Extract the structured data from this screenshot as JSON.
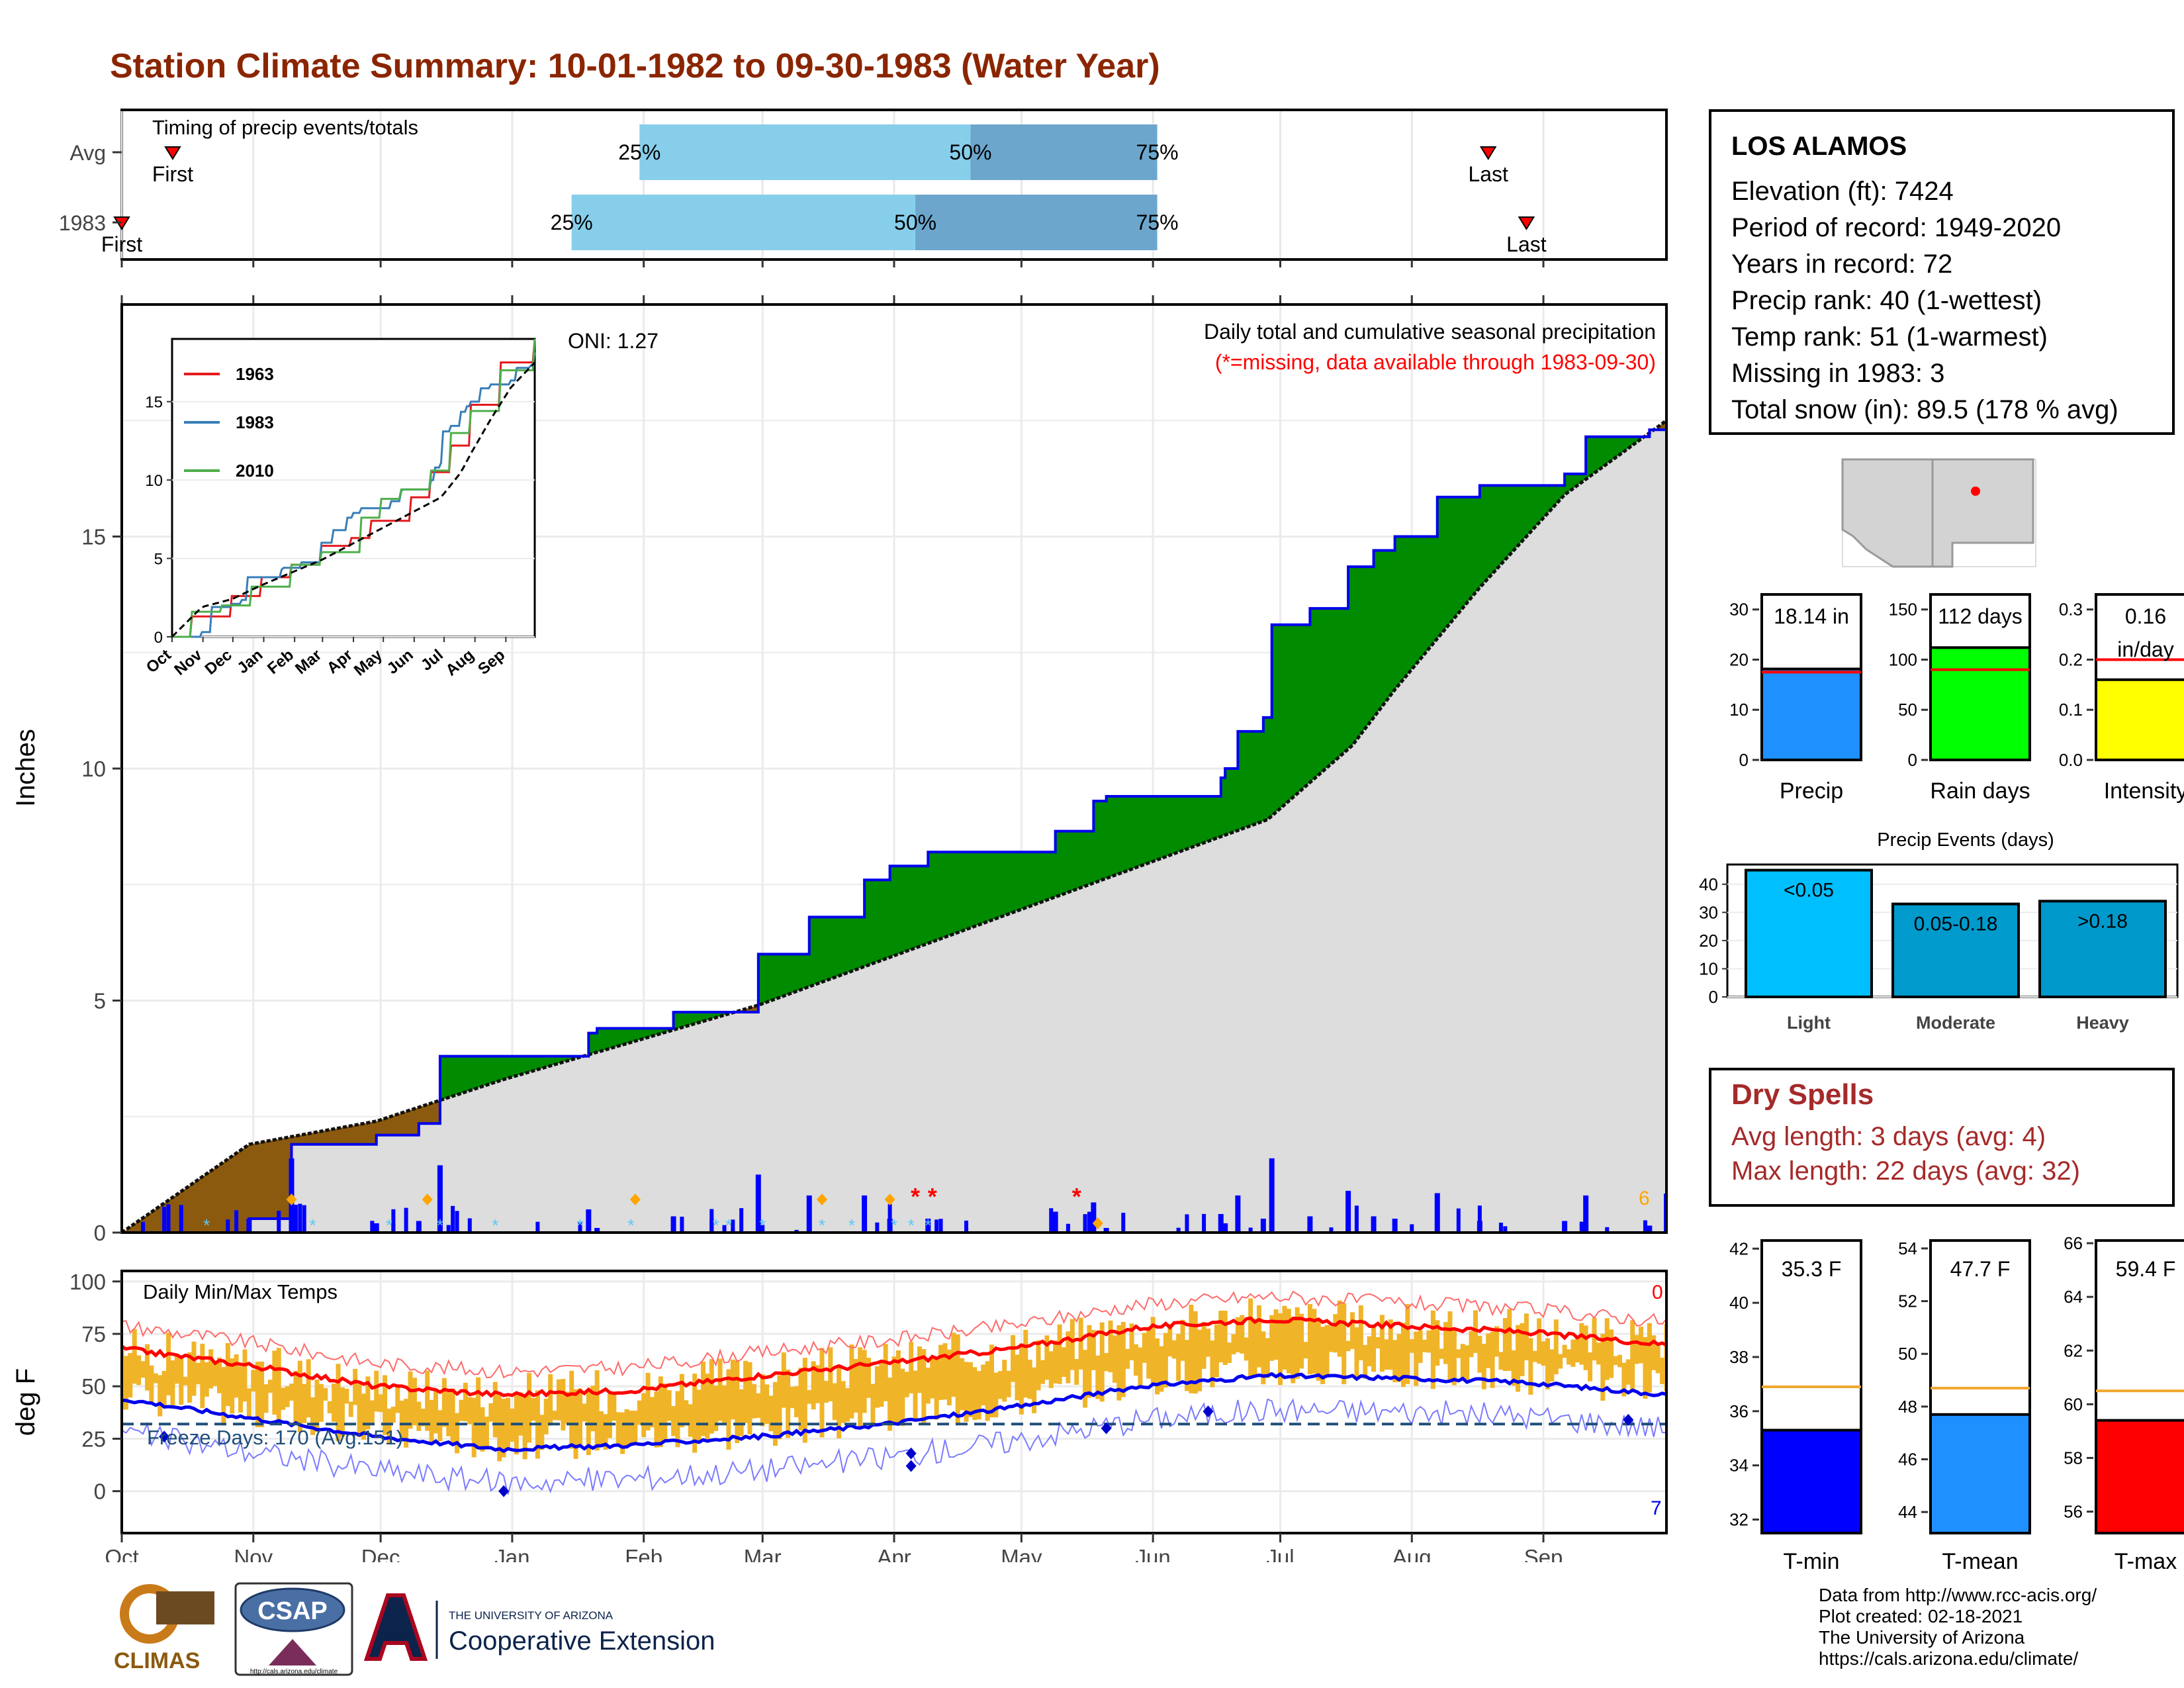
{
  "title": "Station Climate Summary: 10-01-1982 to 09-30-1983 (Water Year)",
  "colors": {
    "title": "#8B2500",
    "light_blue": "#87CEEB",
    "steel": "#6CA6CD",
    "green": "#008B00",
    "brown": "#8B5A0F",
    "gray": "#DDDDDD",
    "orange": "#F0B428",
    "red": "#FF0000",
    "blue": "#0000FF"
  },
  "timing": {
    "label": "Timing of precip events/totals",
    "rows": [
      {
        "name": "Avg",
        "first_label": "First",
        "last_label": "Last",
        "p25_label": "25%",
        "p50_label": "50%",
        "p75_label": "75%",
        "first": 12,
        "p25": 122,
        "p50": 200,
        "p75": 244,
        "last": 322
      },
      {
        "name": "1983",
        "first_label": "First",
        "last_label": "Last",
        "p25_label": "25%",
        "p50_label": "50%",
        "p75_label": "75%",
        "first": 0,
        "p25": 106,
        "p50": 187,
        "p75": 244,
        "last": 331
      }
    ]
  },
  "precip_panel": {
    "ylabel": "Inches",
    "yticks": [
      "0",
      "5",
      "10",
      "15"
    ],
    "caption": "Daily total and cumulative seasonal precipitation",
    "missing_note": "(*=missing, data available through 1983-09-30)",
    "oni": "ONI: 1.27",
    "daily_max_label": "6",
    "inset": {
      "yticks": [
        "0",
        "5",
        "10",
        "15"
      ],
      "xticks": [
        "Oct",
        "Nov",
        "Dec",
        "Jan",
        "Feb",
        "Mar",
        "Apr",
        "May",
        "Jun",
        "Jul",
        "Aug",
        "Sep"
      ],
      "legend": [
        "1963",
        "1983",
        "2010"
      ]
    }
  },
  "temp_panel": {
    "ylabel": "deg F",
    "label": "Daily Min/Max Temps",
    "yticks": [
      "0",
      "25",
      "50",
      "75",
      "100"
    ],
    "freeze_label": "Freeze Days: 170 (Avg:151)",
    "hot_count": "0",
    "cold_count": "7"
  },
  "xaxis_months": [
    "Oct",
    "Nov",
    "Dec",
    "Jan",
    "Feb",
    "Mar",
    "Apr",
    "May",
    "Jun",
    "Jul",
    "Aug",
    "Sep"
  ],
  "station": {
    "name": "LOS ALAMOS",
    "lines": [
      "Elevation (ft): 7424",
      "Period of record: 1949-2020",
      "Years in record: 72",
      "Precip rank: 40 (1-wettest)",
      "Temp rank: 51 (1-warmest)",
      "Missing in 1983: 3",
      "Total snow (in): 89.5 (178 % avg)"
    ]
  },
  "summary_bars": [
    {
      "label": "Precip",
      "value_label": "18.14 in",
      "value": 18.14,
      "avg": 17.5,
      "max": 33,
      "ticks": [
        "0",
        "10",
        "20",
        "30"
      ],
      "color": "#1E90FF"
    },
    {
      "label": "Rain days",
      "value_label": "112 days",
      "value": 112,
      "avg": 90,
      "max": 165,
      "ticks": [
        "0",
        "50",
        "100",
        "150"
      ],
      "color": "#00FF00"
    },
    {
      "label": "Intensity",
      "value_label": "0.16",
      "value_label2": "in/day",
      "value": 0.16,
      "avg": 0.2,
      "max": 0.33,
      "ticks": [
        "0.0",
        "0.1",
        "0.2",
        "0.3"
      ],
      "color": "#FFFF00"
    }
  ],
  "precip_events": {
    "title": "Precip Events (days)",
    "ticks": [
      "0",
      "10",
      "20",
      "30",
      "40"
    ],
    "bars": [
      {
        "label": "Light",
        "value_label": "<0.05",
        "value": 45,
        "color": "#00BFFF"
      },
      {
        "label": "Moderate",
        "value_label": "0.05-0.18",
        "value": 33,
        "color": "#009ACD"
      },
      {
        "label": "Heavy",
        "value_label": ">0.18",
        "value": 34,
        "color": "#0099CC"
      }
    ]
  },
  "dry_spells": {
    "title": "Dry Spells",
    "avg_line": "Avg length: 3 days (avg: 4)",
    "max_line": "Max length: 22 days (avg: 32)"
  },
  "temp_bars": [
    {
      "label": "T-min",
      "value_label": "35.3 F",
      "value": 35.3,
      "avg": 36.9,
      "min": 31.5,
      "max": 42.3,
      "ticks": [
        "32",
        "34",
        "36",
        "38",
        "40",
        "42"
      ],
      "color": "#0000FF"
    },
    {
      "label": "T-mean",
      "value_label": "47.7 F",
      "value": 47.7,
      "avg": 48.7,
      "min": 43.2,
      "max": 54.3,
      "ticks": [
        "44",
        "46",
        "48",
        "50",
        "52",
        "54"
      ],
      "color": "#1E90FF"
    },
    {
      "label": "T-max",
      "value_label": "59.4 F",
      "value": 59.4,
      "avg": 60.5,
      "min": 55.2,
      "max": 66.1,
      "ticks": [
        "56",
        "58",
        "60",
        "62",
        "64",
        "66"
      ],
      "color": "#FF0000"
    }
  ],
  "credits": [
    "Data from http://www.rcc-acis.org/",
    "Plot created: 02-18-2021",
    "The University of Arizona",
    "https://cals.arizona.edu/climate/"
  ],
  "logos": {
    "climas": "CLIMAS",
    "csap": "CSAP",
    "csap_url": "http://cals.arizona.edu/climate",
    "ua_small": "THE UNIVERSITY OF ARIZONA",
    "ua_big": "Cooperative Extension"
  },
  "chart_data": [
    {
      "type": "area",
      "title": "Daily total and cumulative seasonal precipitation",
      "xlabel": "",
      "ylabel": "Inches",
      "ylim": [
        0,
        20
      ],
      "x_months": [
        "Oct",
        "Nov",
        "Dec",
        "Jan",
        "Feb",
        "Mar",
        "Apr",
        "May",
        "Jun",
        "Jul",
        "Aug",
        "Sep"
      ],
      "series": [
        {
          "name": "1983",
          "x_days": [
            0,
            30,
            40,
            60,
            70,
            75,
            110,
            112,
            130,
            150,
            157,
            162,
            165,
            175,
            181,
            182,
            190,
            220,
            229,
            232,
            259,
            260,
            263,
            269,
            271,
            280,
            289,
            295,
            300,
            310,
            320,
            340,
            345,
            360,
            364
          ],
          "values": [
            0,
            0.3,
            1.9,
            2.1,
            2.35,
            3.8,
            4.3,
            4.4,
            4.75,
            6.0,
            6.0,
            6.8,
            6.8,
            7.6,
            7.9,
            7.9,
            8.2,
            8.65,
            9.3,
            9.4,
            9.8,
            10.0,
            10.8,
            11.1,
            13.1,
            13.45,
            14.35,
            14.7,
            15.0,
            15.85,
            16.1,
            16.35,
            17.15,
            17.3,
            18.14
          ]
        },
        {
          "name": "Average",
          "x_days": [
            0,
            30,
            60,
            90,
            120,
            150,
            180,
            210,
            240,
            270,
            290,
            300,
            320,
            340,
            364
          ],
          "values": [
            0,
            1.9,
            2.4,
            3.3,
            4.1,
            4.9,
            5.9,
            6.9,
            7.9,
            8.9,
            10.5,
            11.7,
            13.9,
            15.9,
            17.5
          ]
        }
      ]
    },
    {
      "type": "line",
      "title": "Daily Min/Max Temps",
      "ylabel": "deg F",
      "ylim": [
        -20,
        105
      ],
      "series": [
        {
          "name": "Normal max",
          "x_days": [
            0,
            30,
            60,
            90,
            120,
            150,
            180,
            210,
            240,
            270,
            300,
            330,
            364
          ],
          "values": [
            68,
            60,
            50,
            46,
            48,
            55,
            61,
            68,
            78,
            82,
            79,
            76,
            70
          ]
        },
        {
          "name": "Normal min",
          "x_days": [
            0,
            30,
            60,
            90,
            120,
            150,
            180,
            210,
            240,
            270,
            300,
            330,
            364
          ],
          "values": [
            44,
            35,
            26,
            20,
            22,
            26,
            32,
            40,
            50,
            55,
            54,
            52,
            46
          ]
        },
        {
          "name": "Freeze line",
          "x_days": [
            0,
            364
          ],
          "values": [
            32,
            32
          ]
        }
      ]
    }
  ]
}
